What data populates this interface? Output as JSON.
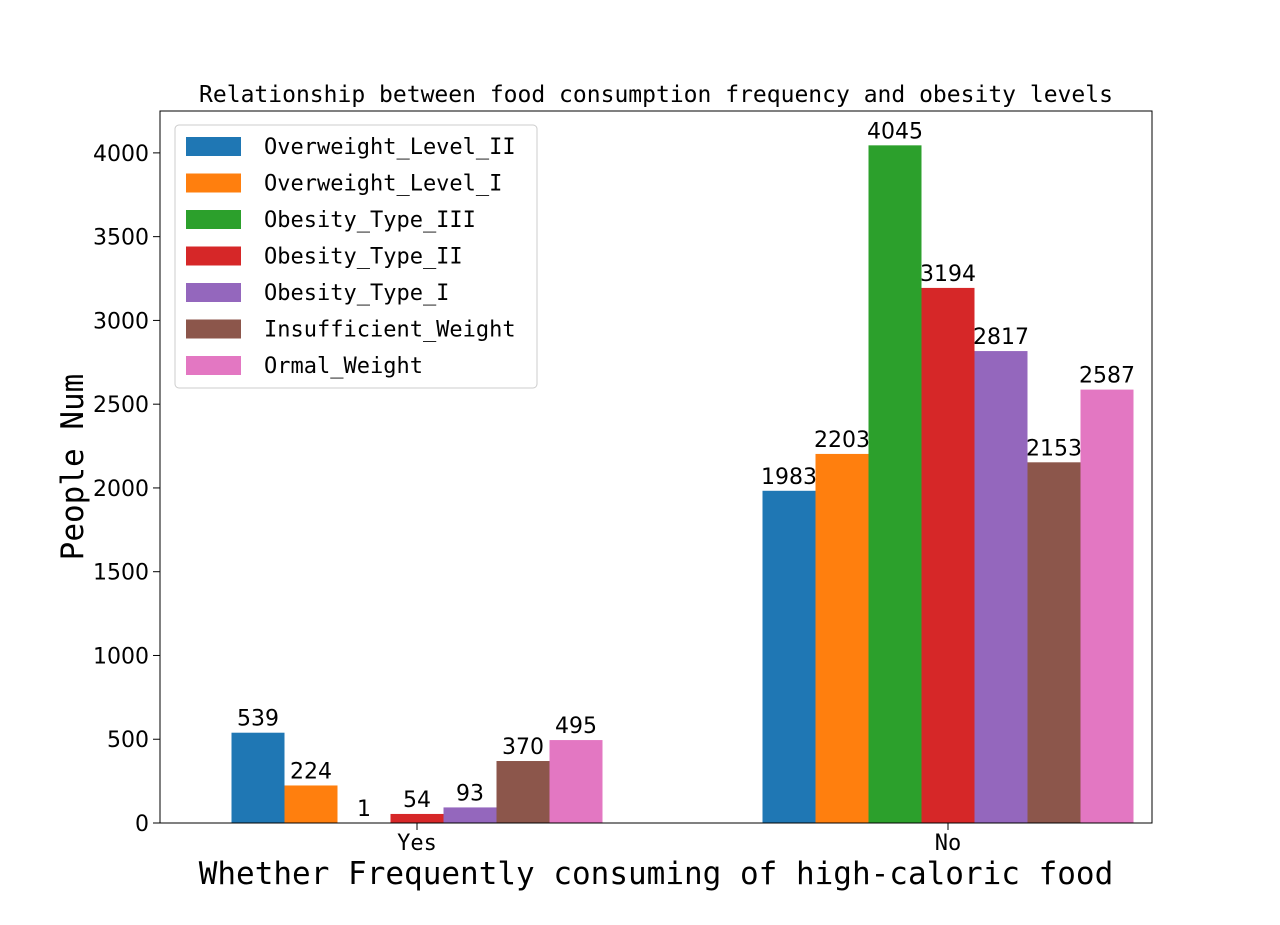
{
  "chart_data": {
    "type": "bar",
    "title": "Relationship between food consumption frequency and obesity levels",
    "xlabel": "Whether Frequently consuming of high-caloric food",
    "ylabel": "People Num",
    "categories": [
      "Yes",
      "No"
    ],
    "ylim": [
      0,
      4250
    ],
    "yticks": [
      0,
      500,
      1000,
      1500,
      2000,
      2500,
      3000,
      3500,
      4000
    ],
    "legend_position": "top-left",
    "grid": false,
    "series": [
      {
        "name": "Overweight_Level_II",
        "color": "#1f77b4",
        "values": [
          539,
          1983
        ]
      },
      {
        "name": "Overweight_Level_I",
        "color": "#ff7f0e",
        "values": [
          224,
          2203
        ]
      },
      {
        "name": "Obesity_Type_III",
        "color": "#2ca02c",
        "values": [
          1,
          4045
        ]
      },
      {
        "name": "Obesity_Type_II",
        "color": "#d62728",
        "values": [
          54,
          3194
        ]
      },
      {
        "name": "Obesity_Type_I",
        "color": "#9467bd",
        "values": [
          93,
          2817
        ]
      },
      {
        "name": "Insufficient_Weight",
        "color": "#8c564b",
        "values": [
          370,
          2153
        ]
      },
      {
        "name": "Ormal_Weight",
        "color": "#e377c2",
        "values": [
          495,
          2587
        ]
      }
    ]
  }
}
